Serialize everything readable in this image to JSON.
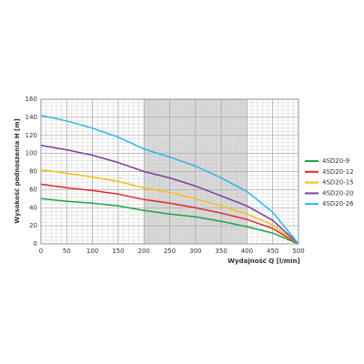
{
  "chart_data": {
    "type": "line",
    "xlabel": "Wydajność Q [l/min]",
    "ylabel": "Wysokość podnoszenia H [m]",
    "x": [
      0,
      50,
      100,
      150,
      200,
      250,
      300,
      350,
      400,
      450,
      500
    ],
    "series": [
      {
        "name": "4SD20-9",
        "color": "#1fa34a",
        "values": [
          50,
          47,
          45,
          42,
          37,
          33,
          30,
          25,
          19,
          12,
          0
        ]
      },
      {
        "name": "4SD20-12",
        "color": "#e3262b",
        "values": [
          66,
          62,
          59,
          55,
          49,
          45,
          40,
          34,
          27,
          17,
          0
        ]
      },
      {
        "name": "4SD20-15",
        "color": "#f6c012",
        "values": [
          82,
          78,
          74,
          69,
          62,
          57,
          50,
          42,
          33,
          21,
          0
        ]
      },
      {
        "name": "4SD20-20",
        "color": "#7b3fa0",
        "values": [
          109,
          104,
          98,
          90,
          80,
          73,
          64,
          53,
          42,
          26,
          0
        ]
      },
      {
        "name": "4SD20-26",
        "color": "#27b6e6",
        "values": [
          142,
          136,
          128,
          118,
          105,
          96,
          86,
          73,
          58,
          35,
          0
        ]
      }
    ],
    "xlim": [
      0,
      500
    ],
    "ylim": [
      0,
      160
    ],
    "xticks": [
      0,
      50,
      100,
      150,
      200,
      250,
      300,
      350,
      400,
      450,
      500
    ],
    "yticks": [
      0,
      20,
      40,
      60,
      80,
      100,
      120,
      140,
      160
    ],
    "shaded_xrange": [
      200,
      400
    ],
    "grid": true,
    "legend": "right"
  }
}
